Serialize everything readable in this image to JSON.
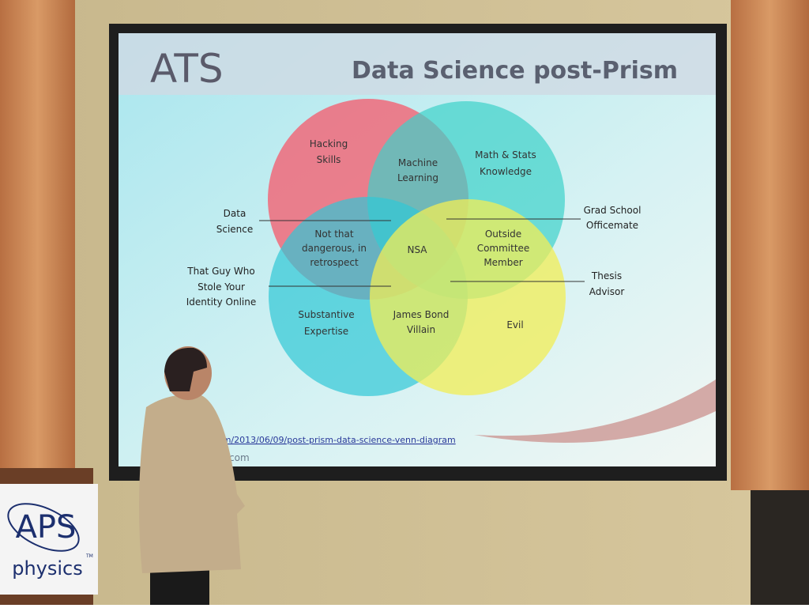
{
  "slide": {
    "logo": "ATS",
    "title": "Data Science post-Prism",
    "regions": [
      {
        "lines": [
          "Hacking",
          "Skills"
        ]
      },
      {
        "lines": [
          "Machine",
          "Learning"
        ]
      },
      {
        "lines": [
          "Math & Stats",
          "Knowledge"
        ]
      },
      {
        "lines": [
          "Not that",
          "dangerous, in",
          "retrospect"
        ]
      },
      {
        "lines": [
          "NSA"
        ]
      },
      {
        "lines": [
          "Outside",
          "Committee",
          "Member"
        ]
      },
      {
        "lines": [
          "Substantive",
          "Expertise"
        ]
      },
      {
        "lines": [
          "James Bond",
          "Villain"
        ]
      },
      {
        "lines": [
          "Evil"
        ]
      }
    ],
    "annotations": [
      {
        "lines": [
          "Data",
          "Science"
        ]
      },
      {
        "lines": [
          "That Guy Who",
          "Stole Your",
          "Identity Online"
        ]
      },
      {
        "lines": [
          "Grad School",
          "Officemate"
        ]
      },
      {
        "lines": [
          "Thesis",
          "Advisor"
        ]
      }
    ],
    "url": "om/2013/06/09/post-prism-data-science-venn-diagram",
    "url_tail": "com"
  },
  "podium": {
    "logo": "APS",
    "text": "physics",
    "mark": "TM"
  }
}
